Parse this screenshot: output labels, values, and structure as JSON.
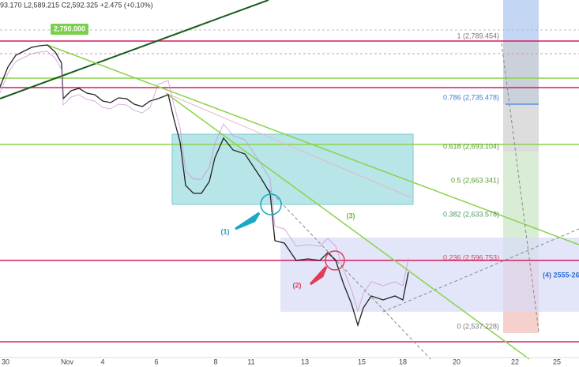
{
  "header": {
    "ohlc": "93.170  L2,589.215  C2,592.325  +2.475 (+0.10%)"
  },
  "price_tag": "2,790.000",
  "fib": {
    "levels": [
      "1 (2,789.454)",
      "0.786 (2,735.478)",
      "0.618 (2,693.104)",
      "0.5 (2,663.341)",
      "0.382 (2,633.578)",
      "0.236 (2,596.753)",
      "0 (2,537.228)"
    ]
  },
  "annotations": [
    "(1)",
    "(2)",
    "(3)",
    "(4) 2555-26"
  ],
  "x_axis": {
    "labels": [
      "30",
      "Nov",
      "4",
      "6",
      "8",
      "11",
      "13",
      "15",
      "18",
      "20",
      "22",
      "25"
    ]
  }
}
